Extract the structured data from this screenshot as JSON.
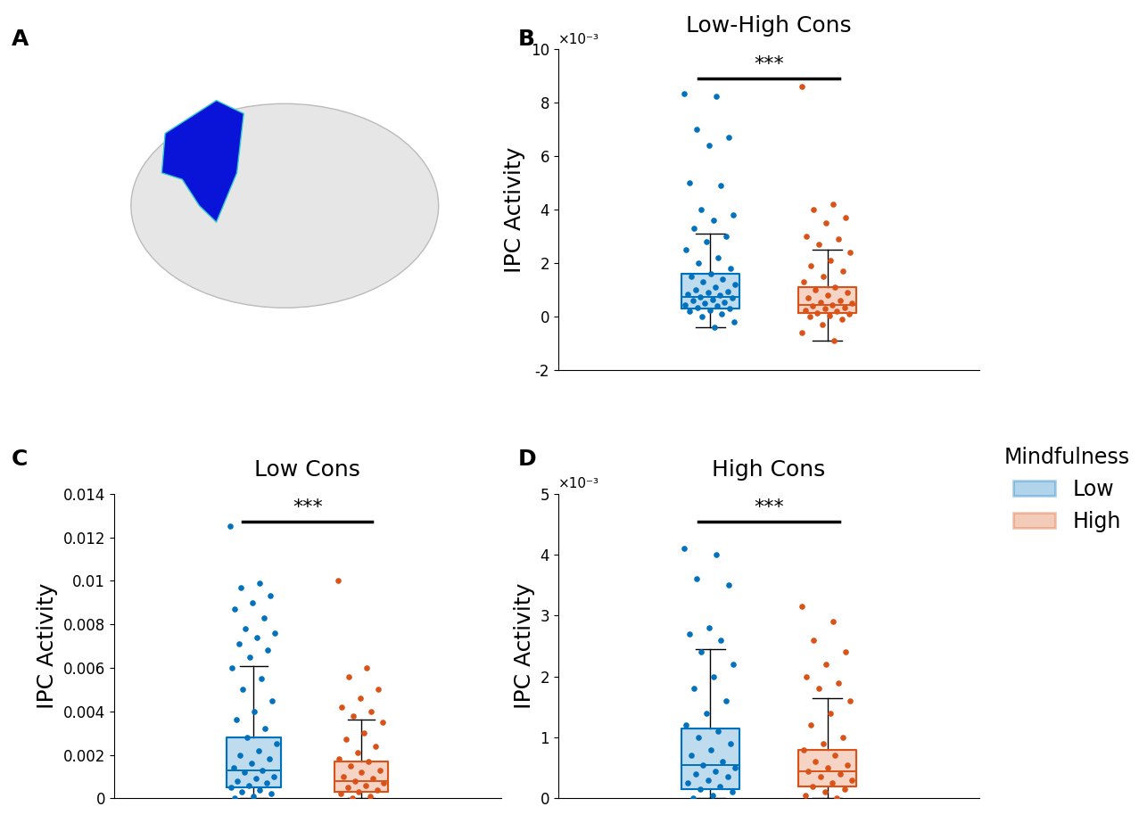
{
  "image_panel": {
    "panel": "A"
  },
  "legend_title": "Mindfulness",
  "chart_data": [
    {
      "type": "box",
      "panel": "B",
      "title": "Low-High Cons",
      "ylabel": "IPC Activity",
      "y_multiplier_label": "×10⁻³",
      "significance": "***",
      "ylim": [
        -2,
        10
      ],
      "yticks": [
        -2,
        0,
        2,
        4,
        6,
        8,
        10
      ],
      "series": [
        {
          "name": "Low",
          "color": "#0072bd",
          "box": {
            "whislo": -0.4,
            "q1": 0.3,
            "med": 0.75,
            "q3": 1.6,
            "whishi": 3.1
          },
          "values": [
            8.35,
            8.25,
            7.0,
            6.7,
            6.4,
            5.0,
            4.9,
            4.0,
            3.8,
            3.6,
            3.3,
            3.0,
            2.8,
            2.5,
            2.2,
            2.0,
            1.8,
            1.6,
            1.5,
            1.4,
            1.3,
            1.2,
            1.1,
            1.0,
            0.95,
            0.9,
            0.85,
            0.8,
            0.75,
            0.7,
            0.65,
            0.6,
            0.55,
            0.5,
            0.45,
            0.4,
            0.35,
            0.3,
            0.25,
            0.2,
            0.1,
            0.0,
            -0.2,
            -0.4
          ]
        },
        {
          "name": "High",
          "color": "#d95319",
          "box": {
            "whislo": -0.9,
            "q1": 0.15,
            "med": 0.45,
            "q3": 1.1,
            "whishi": 2.5
          },
          "values": [
            8.6,
            4.2,
            4.0,
            3.7,
            3.5,
            3.0,
            2.9,
            2.7,
            2.4,
            2.1,
            1.9,
            1.7,
            1.5,
            1.3,
            1.1,
            1.0,
            0.9,
            0.8,
            0.7,
            0.6,
            0.55,
            0.5,
            0.45,
            0.4,
            0.35,
            0.3,
            0.25,
            0.2,
            0.15,
            0.1,
            0.05,
            0.0,
            -0.1,
            -0.3,
            -0.6,
            -0.9
          ]
        }
      ]
    },
    {
      "type": "box",
      "panel": "C",
      "title": "Low Cons",
      "ylabel": "IPC Activity",
      "significance": "***",
      "ylim": [
        0,
        0.014
      ],
      "yticks": [
        0,
        0.002,
        0.004,
        0.006,
        0.008,
        0.01,
        0.012,
        0.014
      ],
      "series": [
        {
          "name": "Low",
          "color": "#0072bd",
          "box": {
            "whislo": 0,
            "q1": 0.0005,
            "med": 0.0013,
            "q3": 0.0028,
            "whishi": 0.0061
          },
          "values": [
            0.0125,
            0.0099,
            0.0097,
            0.0093,
            0.009,
            0.0087,
            0.0083,
            0.0078,
            0.0076,
            0.0074,
            0.0071,
            0.0068,
            0.0065,
            0.006,
            0.0055,
            0.005,
            0.0045,
            0.004,
            0.0036,
            0.0032,
            0.0028,
            0.0025,
            0.0022,
            0.002,
            0.0018,
            0.0016,
            0.0014,
            0.0013,
            0.0012,
            0.001,
            0.0009,
            0.0008,
            0.0007,
            0.0006,
            0.0005,
            0.0004,
            0.0003,
            0.0002,
            0.0001,
            0.0
          ]
        },
        {
          "name": "High",
          "color": "#d95319",
          "box": {
            "whislo": 0,
            "q1": 0.0003,
            "med": 0.0008,
            "q3": 0.0017,
            "whishi": 0.0036
          },
          "values": [
            0.01,
            0.006,
            0.0056,
            0.005,
            0.0046,
            0.0042,
            0.004,
            0.0038,
            0.0035,
            0.003,
            0.0027,
            0.0024,
            0.0021,
            0.0018,
            0.0017,
            0.0015,
            0.0013,
            0.0012,
            0.001,
            0.0009,
            0.0008,
            0.0007,
            0.0006,
            0.0005,
            0.0004,
            0.0003,
            0.0002,
            0.0001,
            0.0
          ]
        }
      ]
    },
    {
      "type": "box",
      "panel": "D",
      "title": "High Cons",
      "ylabel": "IPC Activity",
      "y_multiplier_label": "×10⁻³",
      "significance": "***",
      "ylim": [
        0,
        5
      ],
      "yticks": [
        0,
        1,
        2,
        3,
        4,
        5
      ],
      "series": [
        {
          "name": "Low",
          "color": "#0072bd",
          "box": {
            "whislo": 0,
            "q1": 0.15,
            "med": 0.55,
            "q3": 1.15,
            "whishi": 2.45
          },
          "values": [
            4.1,
            4.0,
            3.6,
            3.5,
            2.8,
            2.7,
            2.6,
            2.4,
            2.2,
            2.0,
            1.8,
            1.6,
            1.4,
            1.2,
            1.1,
            1.0,
            0.9,
            0.8,
            0.7,
            0.6,
            0.55,
            0.5,
            0.45,
            0.4,
            0.35,
            0.3,
            0.25,
            0.2,
            0.15,
            0.1,
            0.05,
            0.0
          ]
        },
        {
          "name": "High",
          "color": "#d95319",
          "box": {
            "whislo": 0,
            "q1": 0.2,
            "med": 0.45,
            "q3": 0.8,
            "whishi": 1.65
          },
          "values": [
            3.15,
            2.9,
            2.6,
            2.4,
            2.2,
            2.0,
            1.9,
            1.8,
            1.6,
            1.4,
            1.2,
            1.0,
            0.9,
            0.8,
            0.7,
            0.6,
            0.55,
            0.5,
            0.45,
            0.4,
            0.35,
            0.3,
            0.25,
            0.2,
            0.15,
            0.1,
            0.05,
            0.0
          ]
        }
      ]
    }
  ]
}
